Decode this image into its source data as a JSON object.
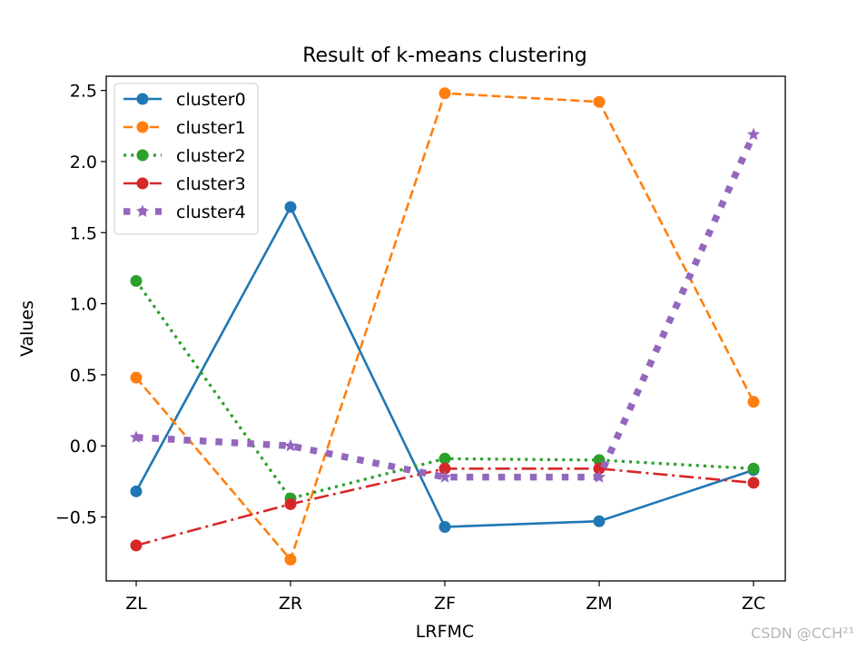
{
  "chart_data": {
    "type": "line",
    "title": "Result of k-means clustering",
    "xlabel": "LRFMC",
    "ylabel": "Values",
    "categories": [
      "ZL",
      "ZR",
      "ZF",
      "ZM",
      "ZC"
    ],
    "ylim": [
      -0.95,
      2.6
    ],
    "yticks": [
      -0.5,
      0.0,
      0.5,
      1.0,
      1.5,
      2.0,
      2.5
    ],
    "ytick_labels": [
      "−0.5",
      "0.0",
      "0.5",
      "1.0",
      "1.5",
      "2.0",
      "2.5"
    ],
    "grid": false,
    "legend_position": "top-left",
    "series": [
      {
        "name": "cluster0",
        "values": [
          -0.32,
          1.68,
          -0.57,
          -0.53,
          -0.17
        ],
        "color": "#1f77b4",
        "linestyle": "solid",
        "marker": "circle"
      },
      {
        "name": "cluster1",
        "values": [
          0.48,
          -0.8,
          2.48,
          2.42,
          0.31
        ],
        "color": "#ff7f0e",
        "linestyle": "dashed",
        "marker": "circle"
      },
      {
        "name": "cluster2",
        "values": [
          1.16,
          -0.37,
          -0.09,
          -0.1,
          -0.16
        ],
        "color": "#2ca02c",
        "linestyle": "dotted",
        "marker": "circle"
      },
      {
        "name": "cluster3",
        "values": [
          -0.7,
          -0.41,
          -0.16,
          -0.16,
          -0.26
        ],
        "color": "#d62728",
        "linestyle": "dashdot",
        "marker": "circle"
      },
      {
        "name": "cluster4",
        "values": [
          0.06,
          0.0,
          -0.22,
          -0.22,
          2.19
        ],
        "color": "#9467bd",
        "linestyle": "thick-dotted",
        "marker": "star"
      }
    ]
  },
  "watermark": "CSDN @CCH²¹"
}
